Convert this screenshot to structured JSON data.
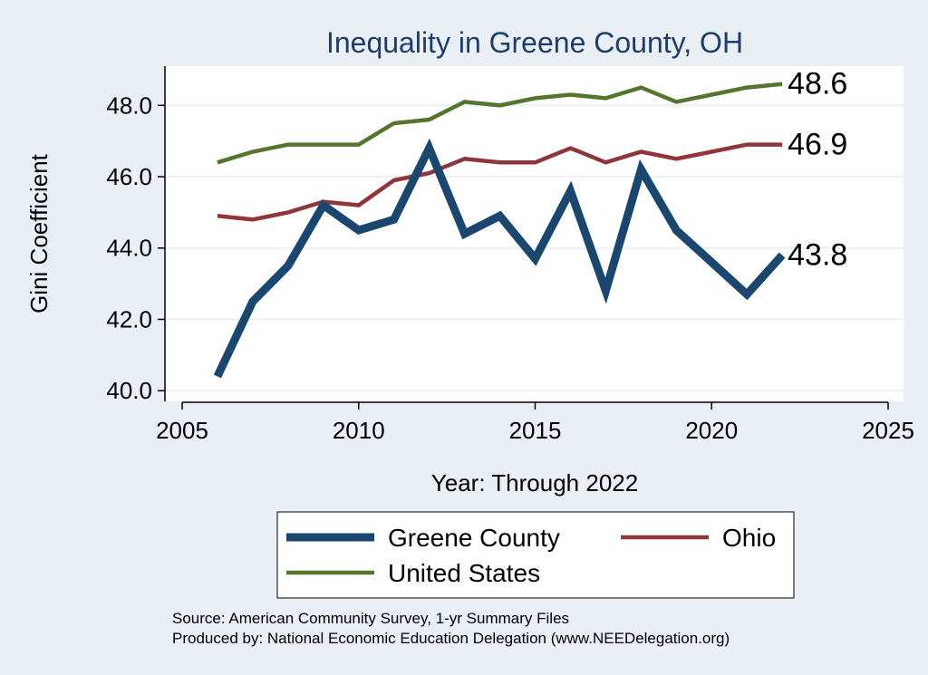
{
  "chart_data": {
    "type": "line",
    "title": "Inequality in Greene County, OH",
    "xlabel": "Year: Through 2022",
    "ylabel": "Gini Coefficient",
    "xlim": [
      2005,
      2025
    ],
    "ylim": [
      39.7,
      49.1
    ],
    "xticks": [
      2005,
      2010,
      2015,
      2020,
      2025
    ],
    "yticks": [
      40.0,
      42.0,
      44.0,
      46.0,
      48.0
    ],
    "ytick_labels": [
      "40.0",
      "42.0",
      "44.0",
      "46.0",
      "48.0"
    ],
    "grid": "horizontal",
    "x": [
      2006,
      2007,
      2008,
      2009,
      2010,
      2011,
      2012,
      2013,
      2014,
      2015,
      2016,
      2017,
      2018,
      2019,
      2020,
      2021,
      2022
    ],
    "series": [
      {
        "name": "Greene County",
        "color": "#1a476f",
        "values": [
          40.4,
          42.5,
          43.5,
          45.2,
          44.5,
          44.8,
          46.8,
          44.4,
          44.9,
          43.7,
          45.6,
          42.8,
          46.2,
          44.5,
          43.6,
          42.7,
          43.8
        ],
        "end_label": "43.8"
      },
      {
        "name": "Ohio",
        "color": "#90353b",
        "values": [
          44.9,
          44.8,
          45.0,
          45.3,
          45.2,
          45.9,
          46.1,
          46.5,
          46.4,
          46.4,
          46.8,
          46.4,
          46.7,
          46.5,
          46.7,
          46.9,
          46.9
        ],
        "end_label": "46.9"
      },
      {
        "name": "United States",
        "color": "#55752f",
        "values": [
          46.4,
          46.7,
          46.9,
          46.9,
          46.9,
          47.5,
          47.6,
          48.1,
          48.0,
          48.2,
          48.3,
          48.2,
          48.5,
          48.1,
          48.3,
          48.5,
          48.6
        ],
        "end_label": "48.6"
      }
    ],
    "legend_position": "bottom",
    "notes": [
      "Source: American Community Survey, 1-yr Summary Files",
      "Produced by: National Economic Education Delegation (www.NEEDelegation.org)"
    ]
  }
}
